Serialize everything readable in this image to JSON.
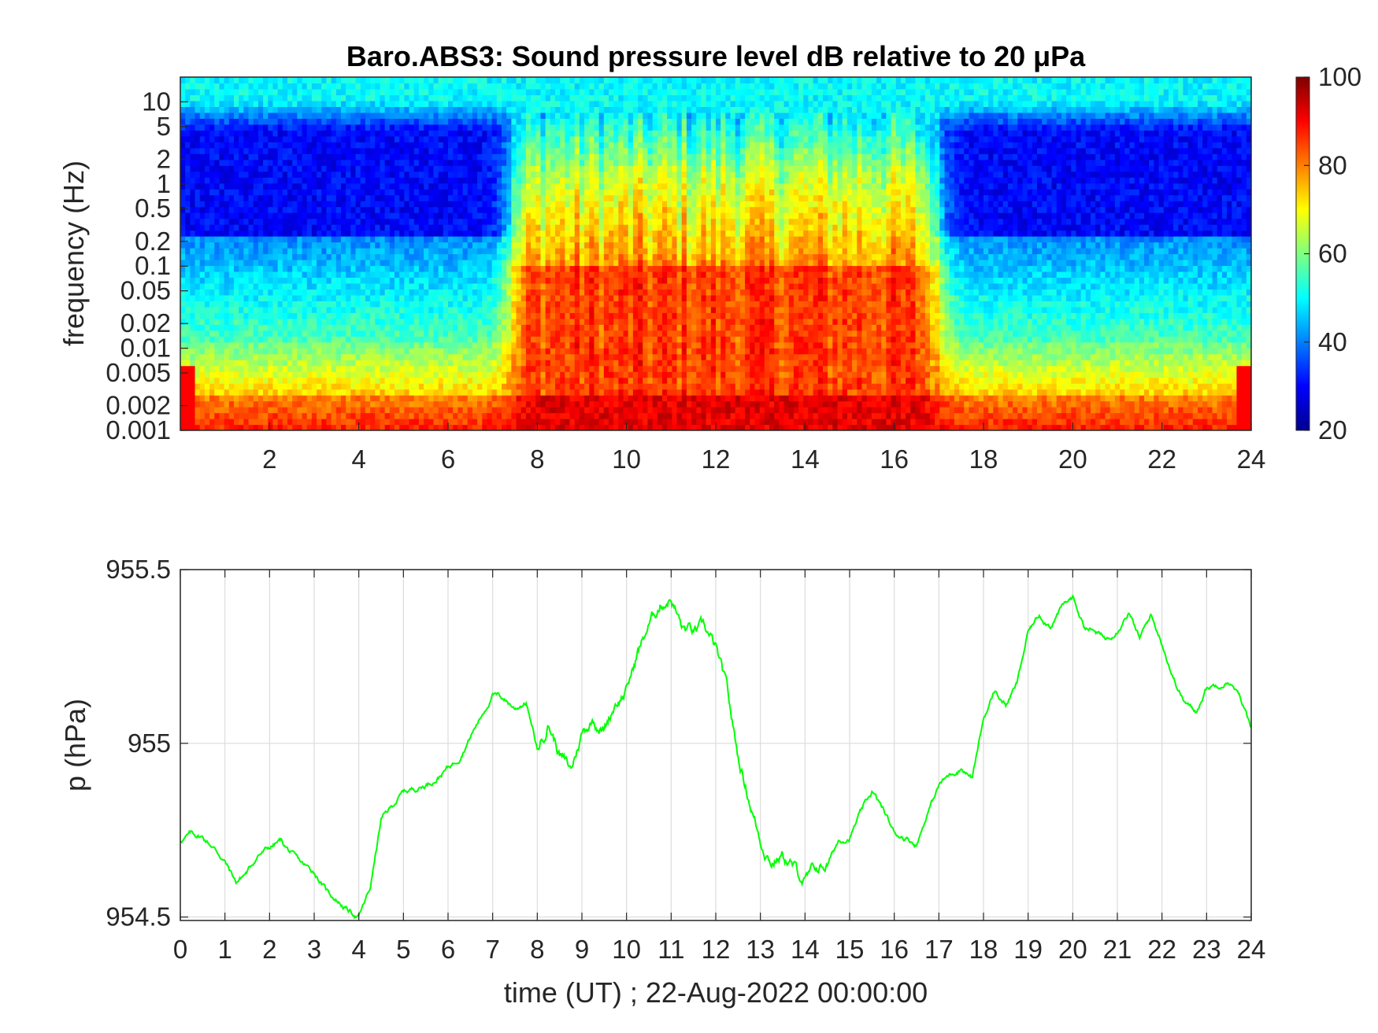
{
  "chart_data": [
    {
      "type": "heatmap",
      "title": "Baro.ABS3: Sound pressure level dB relative to 20 μPa",
      "xlabel": "",
      "ylabel": "frequency (Hz)",
      "x_ticks": [
        "2",
        "4",
        "6",
        "8",
        "10",
        "12",
        "14",
        "16",
        "18",
        "20",
        "22",
        "24"
      ],
      "x_range": [
        0,
        24
      ],
      "y_scale": "log",
      "y_ticks": [
        "0.001",
        "0.002",
        "0.005",
        "0.01",
        "0.02",
        "0.05",
        "0.1",
        "0.2",
        "0.5",
        "1",
        "2",
        "5",
        "10"
      ],
      "y_range": [
        0.001,
        20
      ],
      "colorbar": {
        "min": 20,
        "max": 100,
        "ticks": [
          "20",
          "40",
          "60",
          "80",
          "100"
        ],
        "colormap": "jet"
      },
      "activity": {
        "quiet_hours_1": [
          0,
          7.4
        ],
        "active_hours": [
          7.4,
          17
        ],
        "quiet_hours_2": [
          17,
          24
        ],
        "active_level_db": 85,
        "quiet_level_db_low_freq": 88,
        "quiet_level_db_mid_freq": 30,
        "high_freq_level_db": 50
      },
      "grid": false
    },
    {
      "type": "line",
      "title": "",
      "xlabel": "time (UT) ; 22-Aug-2022 00:00:00",
      "ylabel": "p (hPa)",
      "x_ticks": [
        "0",
        "1",
        "2",
        "3",
        "4",
        "5",
        "6",
        "7",
        "8",
        "9",
        "10",
        "11",
        "12",
        "13",
        "14",
        "15",
        "16",
        "17",
        "18",
        "19",
        "20",
        "21",
        "22",
        "23",
        "24"
      ],
      "y_ticks": [
        "954.5",
        "955",
        "955.5"
      ],
      "xlim": [
        0,
        24
      ],
      "ylim": [
        954.49,
        955.5
      ],
      "grid": true,
      "line_color": "#00ff00",
      "series": [
        {
          "x": [
            0,
            0.25,
            0.5,
            0.75,
            1,
            1.25,
            1.5,
            1.75,
            2,
            2.25,
            2.5,
            2.75,
            3,
            3.25,
            3.5,
            3.75,
            4,
            4.25,
            4.5,
            4.75,
            5,
            5.25,
            5.5,
            5.75,
            6,
            6.25,
            6.5,
            6.75,
            7,
            7.25,
            7.5,
            7.75,
            8,
            8.25,
            8.5,
            8.75,
            9,
            9.25,
            9.5,
            9.75,
            10,
            10.25,
            10.5,
            10.75,
            11,
            11.25,
            11.5,
            11.75,
            12,
            12.25,
            12.5,
            12.75,
            13,
            13.25,
            13.5,
            13.75,
            14,
            14.25,
            14.5,
            14.75,
            15,
            15.25,
            15.5,
            15.75,
            16,
            16.25,
            16.5,
            16.75,
            17,
            17.25,
            17.5,
            17.75,
            18,
            18.25,
            18.5,
            18.75,
            19,
            19.25,
            19.5,
            19.75,
            20,
            20.25,
            20.5,
            20.75,
            21,
            21.25,
            21.5,
            21.75,
            22,
            22.25,
            22.5,
            22.75,
            23,
            23.25,
            23.5,
            23.75,
            24
          ],
          "y": [
            954.72,
            954.74,
            954.73,
            954.7,
            954.66,
            954.6,
            954.63,
            954.68,
            954.7,
            954.72,
            954.68,
            954.65,
            954.63,
            954.58,
            954.55,
            954.52,
            954.5,
            954.58,
            954.78,
            954.82,
            954.86,
            954.87,
            954.88,
            954.9,
            954.93,
            954.96,
            955.02,
            955.08,
            955.14,
            955.13,
            955.1,
            955.12,
            954.98,
            955.06,
            954.97,
            954.92,
            955.03,
            955.07,
            955.04,
            955.12,
            955.15,
            955.26,
            955.34,
            955.4,
            955.42,
            955.33,
            955.32,
            955.33,
            955.27,
            955.15,
            954.96,
            954.84,
            954.72,
            954.66,
            954.68,
            954.64,
            954.6,
            954.64,
            954.65,
            954.72,
            954.73,
            954.8,
            954.86,
            954.81,
            954.74,
            954.73,
            954.71,
            954.8,
            954.88,
            954.91,
            954.93,
            954.9,
            955.07,
            955.15,
            955.11,
            955.17,
            955.32,
            955.37,
            955.34,
            955.39,
            955.42,
            955.34,
            955.32,
            955.3,
            955.33,
            955.38,
            955.3,
            955.37,
            955.29,
            955.19,
            955.12,
            955.09,
            955.16,
            955.17,
            955.18,
            955.13,
            955.05
          ]
        }
      ]
    }
  ]
}
